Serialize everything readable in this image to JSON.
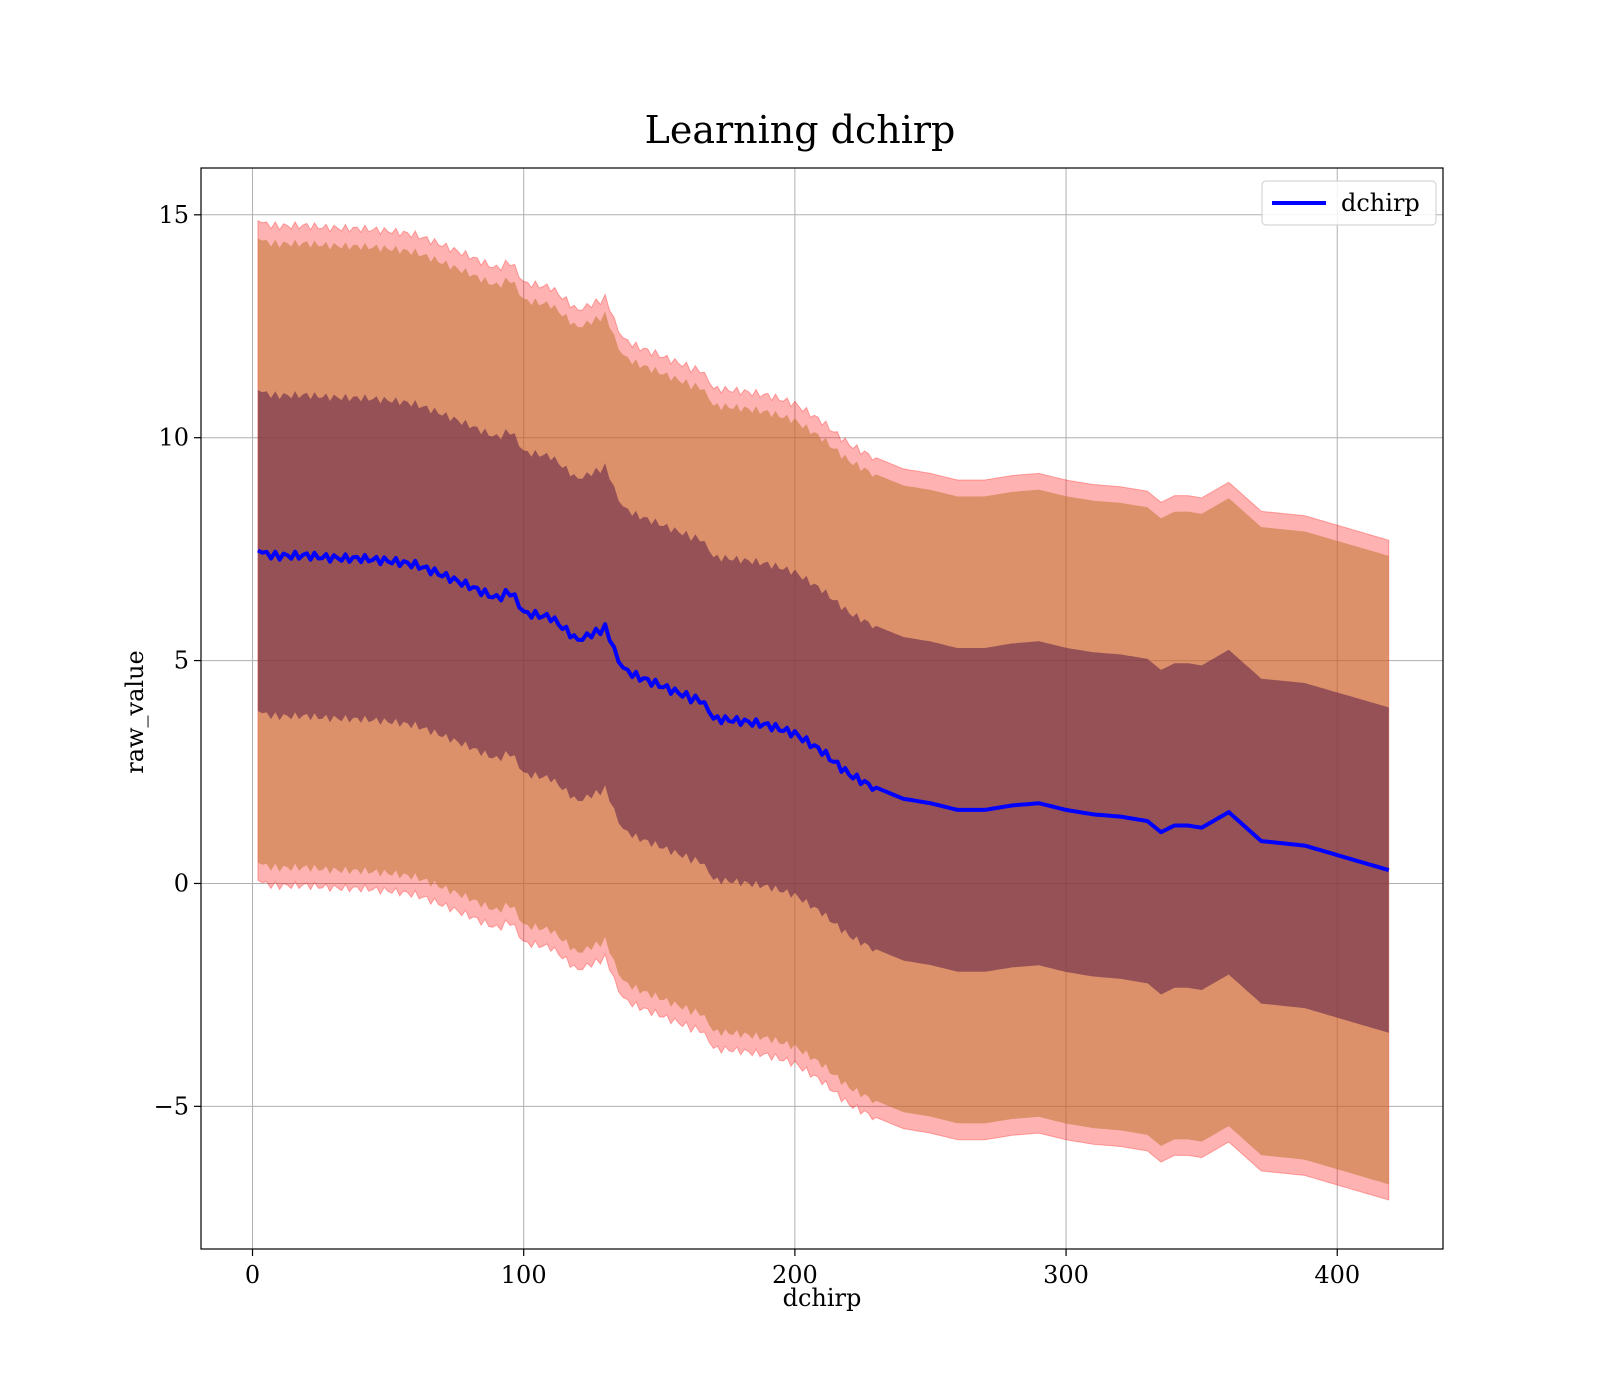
{
  "chart_data": {
    "type": "line",
    "title": "Learning dchirp",
    "xlabel": "dchirp",
    "ylabel": "raw_value",
    "xlim": [
      -19,
      439
    ],
    "ylim": [
      -8.2,
      16.05
    ],
    "x_ticks": [
      0,
      100,
      200,
      300,
      400
    ],
    "x_tick_labels": [
      "0",
      "100",
      "200",
      "300",
      "400"
    ],
    "y_ticks": [
      -5,
      0,
      5,
      10,
      15
    ],
    "y_tick_labels": [
      "−5",
      "0",
      "5",
      "10",
      "15"
    ],
    "grid": true,
    "legend": {
      "position": "top-right",
      "entries": [
        "dchirp"
      ]
    },
    "colors": {
      "line": "#0000ff",
      "band_outer": "#ff0000",
      "band_middle": "#c0772f",
      "band_inner": "#6a2a4a"
    },
    "series": [
      {
        "name": "dchirp",
        "x": [
          2,
          10,
          20,
          30,
          40,
          50,
          60,
          70,
          80,
          90,
          95,
          100,
          110,
          120,
          125,
          130,
          135,
          140,
          150,
          160,
          165,
          170,
          180,
          190,
          200,
          210,
          220,
          230,
          240,
          250,
          260,
          270,
          280,
          290,
          300,
          310,
          320,
          330,
          335,
          340,
          345,
          350,
          360,
          372,
          388,
          419
        ],
        "y": [
          7.5,
          7.35,
          7.4,
          7.35,
          7.3,
          7.2,
          7.1,
          6.9,
          6.7,
          6.45,
          6.5,
          6.1,
          5.95,
          5.4,
          5.65,
          5.7,
          5.0,
          4.7,
          4.5,
          4.25,
          4.1,
          3.7,
          3.6,
          3.5,
          3.35,
          3.0,
          2.5,
          2.15,
          1.9,
          1.8,
          1.65,
          1.65,
          1.75,
          1.8,
          1.65,
          1.55,
          1.5,
          1.4,
          1.15,
          1.3,
          1.3,
          1.25,
          1.6,
          0.95,
          0.85,
          0.3
        ]
      }
    ],
    "bands": [
      {
        "label": "outer",
        "half_width_start": 7.4,
        "half_width_end": 7.4
      },
      {
        "label": "middle",
        "half_width_start": 7.0,
        "half_width_end": 7.05
      },
      {
        "label": "inner",
        "half_width_start": 3.6,
        "half_width_end": 3.65
      }
    ]
  }
}
